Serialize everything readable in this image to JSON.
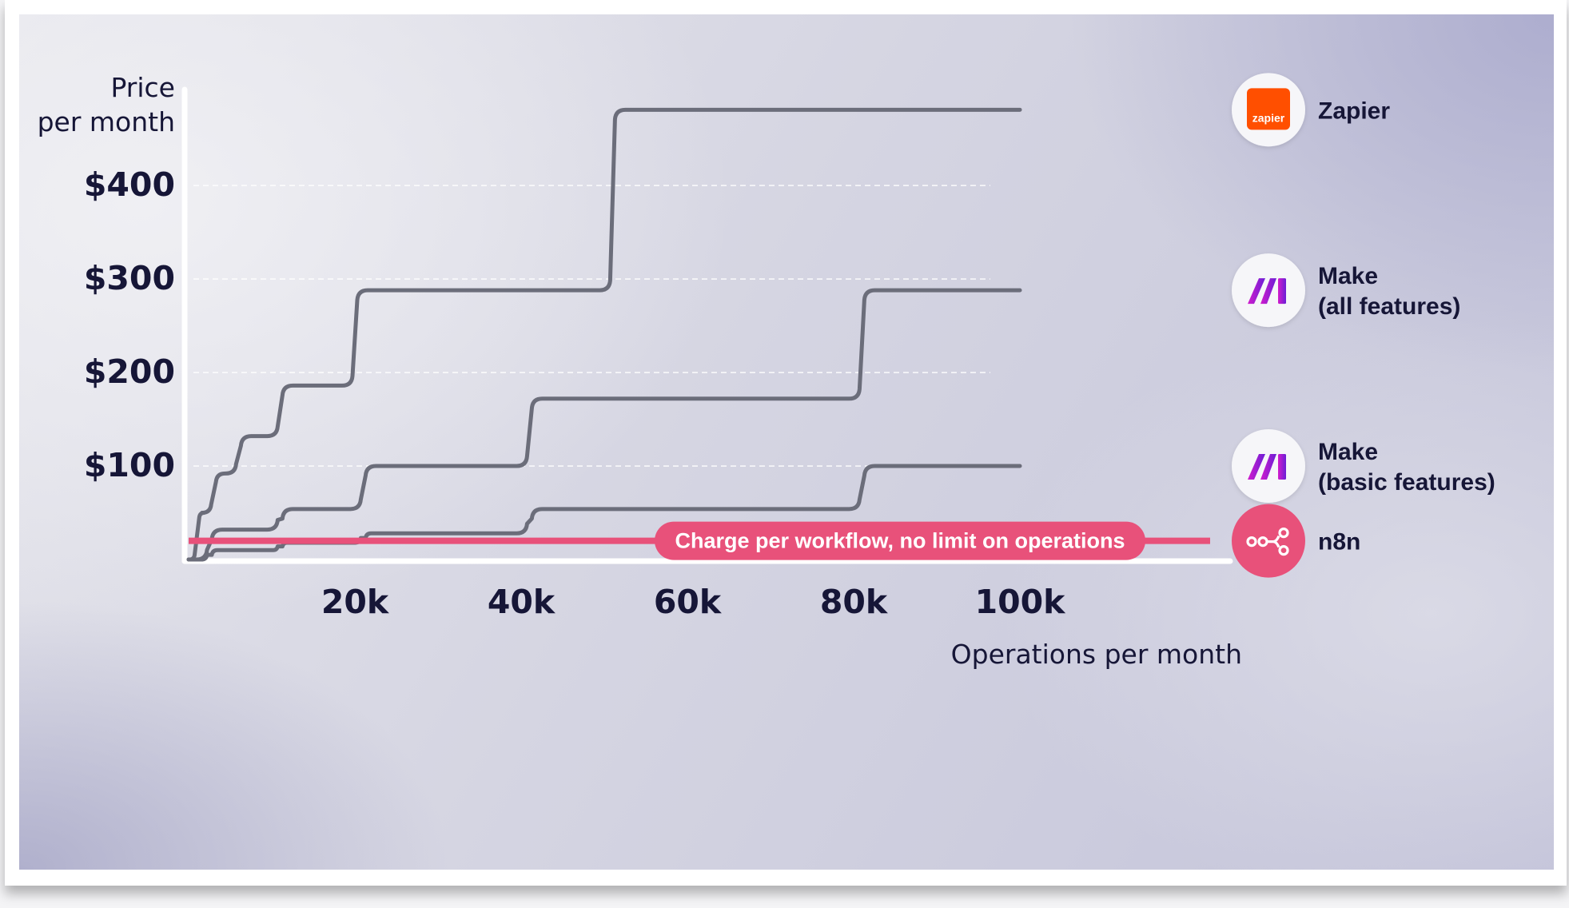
{
  "chart_data": {
    "type": "line",
    "ylabel_lines": [
      "Price",
      "per month"
    ],
    "xlabel": "Operations per month",
    "yticks": [
      {
        "value": 100,
        "label": "$100"
      },
      {
        "value": 200,
        "label": "$200"
      },
      {
        "value": 300,
        "label": "$300"
      },
      {
        "value": 400,
        "label": "$400"
      }
    ],
    "xticks": [
      {
        "value": 20000,
        "label": "20k"
      },
      {
        "value": 40000,
        "label": "40k"
      },
      {
        "value": 60000,
        "label": "60k"
      },
      {
        "value": 80000,
        "label": "80k"
      },
      {
        "value": 100000,
        "label": "100k"
      }
    ],
    "xlim": [
      0,
      100000
    ],
    "ylim": [
      0,
      530
    ],
    "grid": "horizontal dashed",
    "series": [
      {
        "name": "Zapier",
        "label_lines": [
          "Zapier"
        ],
        "icon": "zapier-logo-icon",
        "logo_text": "zapier",
        "color": "#6b6d7a",
        "points": [
          [
            0,
            0
          ],
          [
            1000,
            50
          ],
          [
            3000,
            92
          ],
          [
            6000,
            132
          ],
          [
            11000,
            186
          ],
          [
            20000,
            288
          ],
          [
            51000,
            481
          ],
          [
            100000,
            481
          ]
        ]
      },
      {
        "name": "Make (all features)",
        "label_lines": [
          "Make",
          "(all features)"
        ],
        "icon": "make-logo-icon",
        "color": "#6b6d7a",
        "points": [
          [
            0,
            0
          ],
          [
            2500,
            32
          ],
          [
            11000,
            54
          ],
          [
            21000,
            100
          ],
          [
            41000,
            172
          ],
          [
            81000,
            288
          ],
          [
            100000,
            288
          ]
        ]
      },
      {
        "name": "Make (basic features)",
        "label_lines": [
          "Make",
          "(basic features)"
        ],
        "icon": "make-logo-icon",
        "color": "#6b6d7a",
        "points": [
          [
            0,
            0
          ],
          [
            2500,
            10
          ],
          [
            11000,
            18
          ],
          [
            21000,
            28
          ],
          [
            41000,
            54
          ],
          [
            81000,
            100
          ],
          [
            100000,
            100
          ]
        ]
      },
      {
        "name": "n8n",
        "label_lines": [
          "n8n"
        ],
        "icon": "n8n-logo-icon",
        "color": "#e8517a",
        "points": [
          [
            0,
            20
          ],
          [
            100000,
            20
          ]
        ]
      }
    ],
    "annotation": "Charge per workflow, no limit on operations",
    "colors": {
      "step_line": "#6b6d7a",
      "n8n": "#e8517a",
      "zapier": "#ff4f00",
      "make_start": "#c41fd1",
      "make_end": "#6a1ed6",
      "tick_text": "#161637",
      "grid": "#ffffff"
    }
  }
}
